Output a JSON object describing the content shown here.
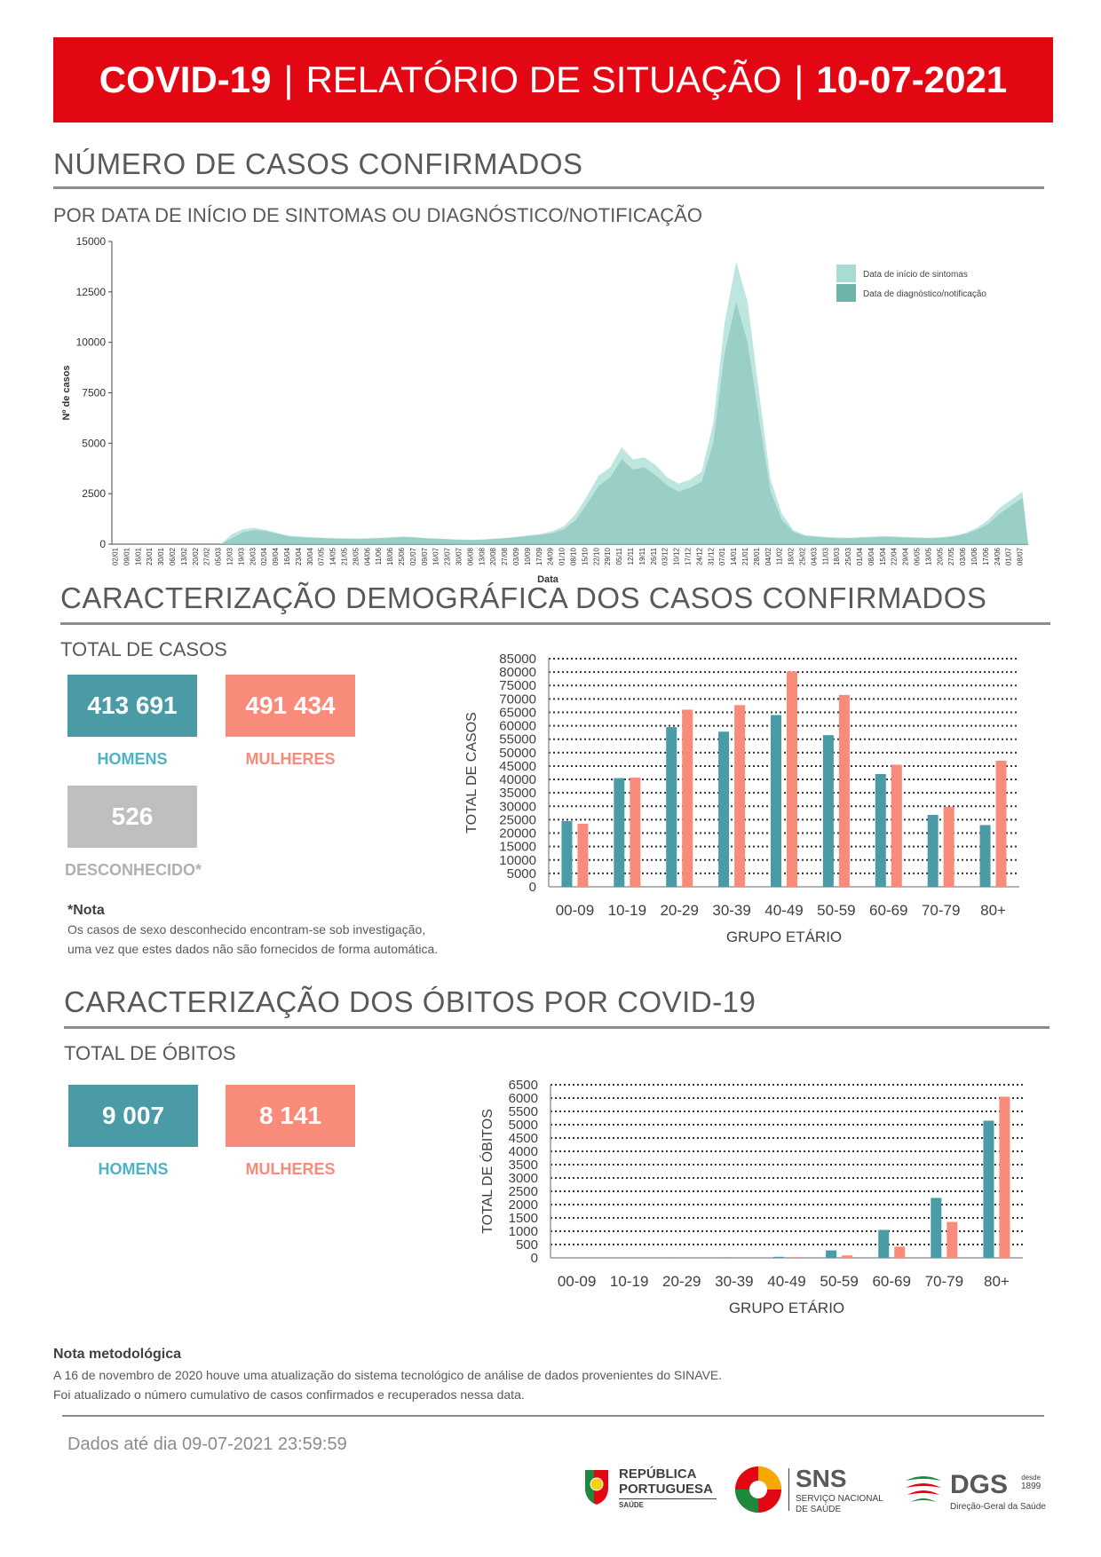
{
  "header": {
    "part1": "COVID-19",
    "part2": "RELATÓRIO DE SITUAÇÃO",
    "part3": "10-07-2021",
    "separator": "|"
  },
  "section1": {
    "title": "NÚMERO DE CASOS CONFIRMADOS",
    "subtitle": "POR DATA DE INÍCIO DE SINTOMAS OU DIAGNÓSTICO/NOTIFICAÇÃO"
  },
  "section2": {
    "title": "CARACTERIZAÇÃO DEMOGRÁFICA DOS CASOS CONFIRMADOS",
    "subtitle": "TOTAL DE CASOS",
    "men_value": "413 691",
    "men_label": "HOMENS",
    "women_value": "491 434",
    "women_label": "MULHERES",
    "unknown_value": "526",
    "unknown_label": "DESCONHECIDO*",
    "note_title": "*Nota",
    "note_line1": "Os casos de sexo desconhecido encontram-se sob investigação,",
    "note_line2": "uma vez que estes dados não são fornecidos de forma automática."
  },
  "section3": {
    "title": "CARACTERIZAÇÃO DOS ÓBITOS POR COVID-19",
    "subtitle": "TOTAL DE ÓBITOS",
    "men_value": "9 007",
    "men_label": "HOMENS",
    "women_value": "8 141",
    "women_label": "MULHERES"
  },
  "method_note": {
    "title": "Nota metodológica",
    "line1": "A 16 de novembro de 2020 houve uma atualização do sistema tecnológico de análise de dados provenientes do SINAVE.",
    "line2": "Foi atualizado o número cumulativo de casos confirmados e recuperados nessa data."
  },
  "footer": {
    "data_until": "Dados até dia 09-07-2021 23:59:59",
    "logo1_line1": "REPÚBLICA",
    "logo1_line2": "PORTUGUESA",
    "logo1_line3": "SAÚDE",
    "logo2_title": "SNS",
    "logo2_line1": "SERVIÇO NACIONAL",
    "logo2_line2": "DE SAÚDE",
    "logo3_title": "DGS",
    "logo3_since": "desde",
    "logo3_year": "1899",
    "logo3_sub": "Direção-Geral da Saúde"
  },
  "colors": {
    "header_red": "#e30613",
    "teal": "#4a9ba5",
    "salmon": "#f98b7a",
    "grey": "#bfbfbf",
    "epi_light": "#a8dcd3",
    "epi_dark": "#6fb3aa"
  },
  "chart_data": [
    {
      "type": "area",
      "xlabel": "Data",
      "ylabel": "Nº de casos",
      "ylim": [
        0,
        15000
      ],
      "yticks": [
        0,
        2500,
        5000,
        7500,
        10000,
        12500,
        15000
      ],
      "legend": [
        "Data de início de sintomas",
        "Data de diagnóstico/notificação"
      ],
      "legend_position": "top-right",
      "x_tick_labels": [
        "02/01",
        "09/01",
        "16/01",
        "23/01",
        "30/01",
        "06/02",
        "13/02",
        "20/02",
        "27/02",
        "05/03",
        "12/03",
        "19/03",
        "26/03",
        "02/04",
        "09/04",
        "16/04",
        "23/04",
        "30/04",
        "07/05",
        "14/05",
        "21/05",
        "28/05",
        "04/06",
        "11/06",
        "18/06",
        "25/06",
        "02/07",
        "09/07",
        "16/07",
        "23/07",
        "30/07",
        "06/08",
        "13/08",
        "20/08",
        "27/08",
        "03/09",
        "10/09",
        "17/09",
        "24/09",
        "01/10",
        "08/10",
        "15/10",
        "22/10",
        "29/10",
        "05/11",
        "12/11",
        "19/11",
        "26/11",
        "03/12",
        "10/12",
        "17/12",
        "24/12",
        "31/12",
        "07/01",
        "14/01",
        "21/01",
        "28/01",
        "04/02",
        "11/02",
        "18/02",
        "25/02",
        "04/03",
        "11/03",
        "18/03",
        "25/03",
        "01/04",
        "08/04",
        "15/04",
        "22/04",
        "29/04",
        "06/05",
        "13/05",
        "20/05",
        "27/05",
        "03/06",
        "10/06",
        "17/06",
        "24/06",
        "01/07",
        "08/07"
      ],
      "series": [
        {
          "name": "Data de início de sintomas",
          "values": [
            0,
            0,
            0,
            0,
            0,
            0,
            0,
            0,
            0,
            0,
            500,
            750,
            800,
            700,
            550,
            420,
            380,
            350,
            320,
            300,
            290,
            280,
            300,
            320,
            350,
            380,
            350,
            300,
            280,
            250,
            230,
            220,
            240,
            280,
            320,
            380,
            450,
            520,
            650,
            900,
            1500,
            2400,
            3400,
            3800,
            4800,
            4200,
            4300,
            3900,
            3300,
            3000,
            3200,
            3600,
            6000,
            11000,
            14000,
            12000,
            7500,
            3200,
            1500,
            700,
            450,
            400,
            350,
            330,
            320,
            350,
            380,
            400,
            380,
            350,
            330,
            320,
            350,
            420,
            550,
            800,
            1200,
            1800,
            2200,
            2600
          ]
        },
        {
          "name": "Data de diagnóstico/notificação",
          "values": [
            0,
            0,
            0,
            0,
            0,
            0,
            0,
            0,
            0,
            0,
            300,
            600,
            700,
            650,
            500,
            380,
            340,
            310,
            290,
            270,
            260,
            250,
            270,
            290,
            320,
            350,
            320,
            280,
            260,
            230,
            210,
            200,
            220,
            260,
            300,
            350,
            400,
            460,
            550,
            750,
            1200,
            2000,
            2900,
            3300,
            4200,
            3700,
            3800,
            3400,
            2900,
            2600,
            2800,
            3100,
            5000,
            9500,
            12000,
            10000,
            6200,
            2600,
            1200,
            600,
            400,
            360,
            320,
            300,
            290,
            320,
            340,
            360,
            340,
            320,
            300,
            290,
            320,
            380,
            500,
            700,
            1000,
            1500,
            1900,
            2300
          ]
        }
      ]
    },
    {
      "type": "bar",
      "xlabel": "GRUPO ETÁRIO",
      "ylabel": "TOTAL DE CASOS",
      "ylim": [
        0,
        85000
      ],
      "yticks": [
        0,
        5000,
        10000,
        15000,
        20000,
        25000,
        30000,
        35000,
        40000,
        45000,
        50000,
        55000,
        60000,
        65000,
        70000,
        75000,
        80000,
        85000
      ],
      "categories": [
        "00-09",
        "10-19",
        "20-29",
        "30-39",
        "40-49",
        "50-59",
        "60-69",
        "70-79",
        "80+"
      ],
      "series": [
        {
          "values": [
            24500,
            40500,
            59500,
            57800,
            64000,
            56500,
            42000,
            26800,
            23000
          ]
        },
        {
          "values": [
            23500,
            40700,
            66000,
            67700,
            80200,
            71500,
            45500,
            29800,
            47000
          ]
        }
      ]
    },
    {
      "type": "bar",
      "xlabel": "GRUPO ETÁRIO",
      "ylabel": "TOTAL DE ÓBITOS",
      "ylim": [
        0,
        6500
      ],
      "yticks": [
        0,
        500,
        1000,
        1500,
        2000,
        2500,
        3000,
        3500,
        4000,
        4500,
        5000,
        5500,
        6000,
        6500
      ],
      "categories": [
        "00-09",
        "10-19",
        "20-29",
        "30-39",
        "40-49",
        "50-59",
        "60-69",
        "70-79",
        "80+"
      ],
      "series": [
        {
          "values": [
            0,
            0,
            4,
            10,
            40,
            280,
            1050,
            2250,
            5150
          ]
        },
        {
          "values": [
            0,
            0,
            2,
            6,
            20,
            90,
            420,
            1350,
            6050
          ]
        }
      ]
    }
  ]
}
